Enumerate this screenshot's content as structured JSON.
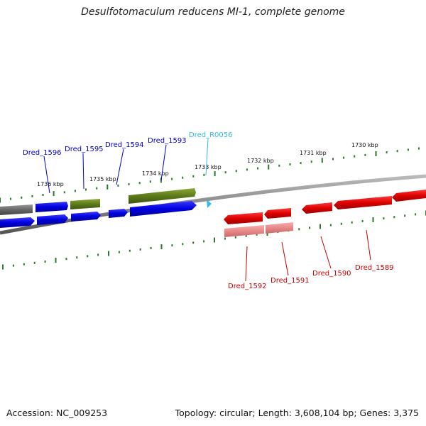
{
  "title": "Desulfotomaculum reducens MI-1, complete genome",
  "footer": {
    "accession": "Accession: NC_009253",
    "summary": "Topology: circular; Length: 3,608,104 bp; Genes: 3,375"
  },
  "colors": {
    "blue_gene": "#0000dd",
    "green_gene": "#5d7a1a",
    "gray_gene": "#666666",
    "red_gene": "#dd0000",
    "pink_gene": "#e88888",
    "rna": "#33bbee",
    "tick": "#2a7a2a",
    "backbone": "#888888",
    "label_blue": "#0000cc",
    "label_cyan": "#33bbdd",
    "label_red": "#cc0000"
  },
  "kbp_ticks": [
    "1736 kbp",
    "1735 kbp",
    "1734 kbp",
    "1733 kbp",
    "1732 kbp",
    "1731 kbp",
    "1730 kbp"
  ],
  "gene_labels_top": [
    {
      "text": "Dred_1596",
      "color": "blue"
    },
    {
      "text": "Dred_1595",
      "color": "blue"
    },
    {
      "text": "Dred_1594",
      "color": "blue"
    },
    {
      "text": "Dred_1593",
      "color": "blue"
    },
    {
      "text": "Dred_R0056",
      "color": "cyan"
    }
  ],
  "gene_labels_bottom": [
    {
      "text": "Dred_1592"
    },
    {
      "text": "Dred_1591"
    },
    {
      "text": "Dred_1590"
    },
    {
      "text": "Dred_1589"
    }
  ]
}
